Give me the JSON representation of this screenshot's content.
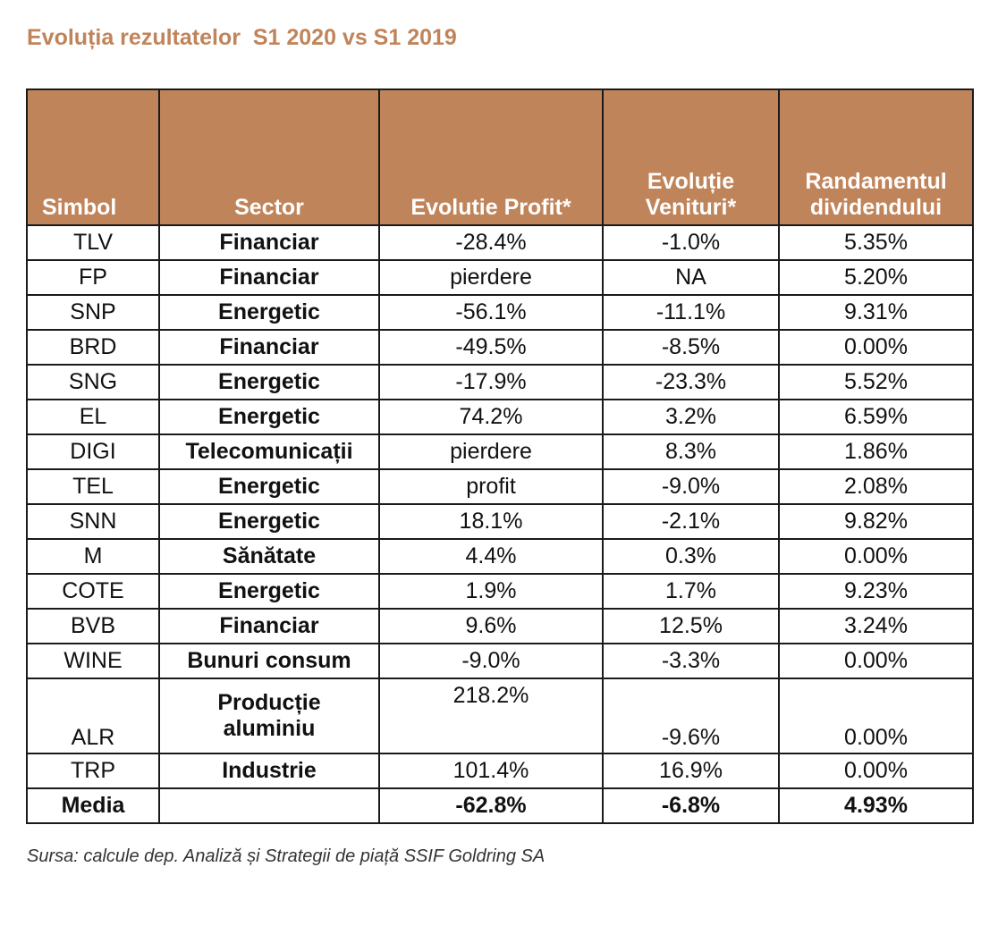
{
  "title": "Evoluția rezultatelor  S1 2020 vs S1 2019",
  "headers": {
    "simbol": "Simbol",
    "sector": "Sector",
    "profit": "Evolutie Profit*",
    "venituri_line1": "Evoluție",
    "venituri_line2": "Venituri*",
    "randament_line1": "Randamentul",
    "randament_line2": "dividendului"
  },
  "rows": [
    {
      "simbol": "TLV",
      "sector": "Financiar",
      "profit": "-28.4%",
      "venituri": "-1.0%",
      "randament": "5.35%"
    },
    {
      "simbol": "FP",
      "sector": "Financiar",
      "profit": "pierdere",
      "venituri": "NA",
      "randament": "5.20%"
    },
    {
      "simbol": "SNP",
      "sector": "Energetic",
      "profit": "-56.1%",
      "venituri": "-11.1%",
      "randament": "9.31%"
    },
    {
      "simbol": "BRD",
      "sector": "Financiar",
      "profit": "-49.5%",
      "venituri": "-8.5%",
      "randament": "0.00%"
    },
    {
      "simbol": "SNG",
      "sector": "Energetic",
      "profit": "-17.9%",
      "venituri": "-23.3%",
      "randament": "5.52%"
    },
    {
      "simbol": "EL",
      "sector": "Energetic",
      "profit": "74.2%",
      "venituri": "3.2%",
      "randament": "6.59%"
    },
    {
      "simbol": "DIGI",
      "sector": "Telecomunicații",
      "profit": "pierdere",
      "venituri": "8.3%",
      "randament": "1.86%"
    },
    {
      "simbol": "TEL",
      "sector": "Energetic",
      "profit": "profit",
      "venituri": "-9.0%",
      "randament": "2.08%"
    },
    {
      "simbol": "SNN",
      "sector": "Energetic",
      "profit": "18.1%",
      "venituri": "-2.1%",
      "randament": "9.82%"
    },
    {
      "simbol": "M",
      "sector": "Sănătate",
      "profit": "4.4%",
      "venituri": "0.3%",
      "randament": "0.00%"
    },
    {
      "simbol": "COTE",
      "sector": "Energetic",
      "profit": "1.9%",
      "venituri": "1.7%",
      "randament": "9.23%"
    },
    {
      "simbol": "BVB",
      "sector": "Financiar",
      "profit": "9.6%",
      "venituri": "12.5%",
      "randament": "3.24%"
    },
    {
      "simbol": "WINE",
      "sector": "Bunuri consum",
      "profit": "-9.0%",
      "venituri": "-3.3%",
      "randament": "0.00%"
    }
  ],
  "alr": {
    "simbol": "ALR",
    "sector_line1": "Producție",
    "sector_line2": "aluminiu",
    "profit": "218.2%",
    "venituri": "-9.6%",
    "randament": "0.00%"
  },
  "trp": {
    "simbol": "TRP",
    "sector": "Industrie",
    "profit": "101.4%",
    "venituri": "16.9%",
    "randament": "0.00%"
  },
  "media": {
    "label": "Media",
    "sector": "",
    "profit": "-62.8%",
    "venituri": "-6.8%",
    "randament": "4.93%"
  },
  "source": "Sursa: calcule dep. Analiză și Strategii de piață SSIF Goldring SA",
  "colors": {
    "accent": "#c0845a",
    "border": "#1a1a1a"
  }
}
